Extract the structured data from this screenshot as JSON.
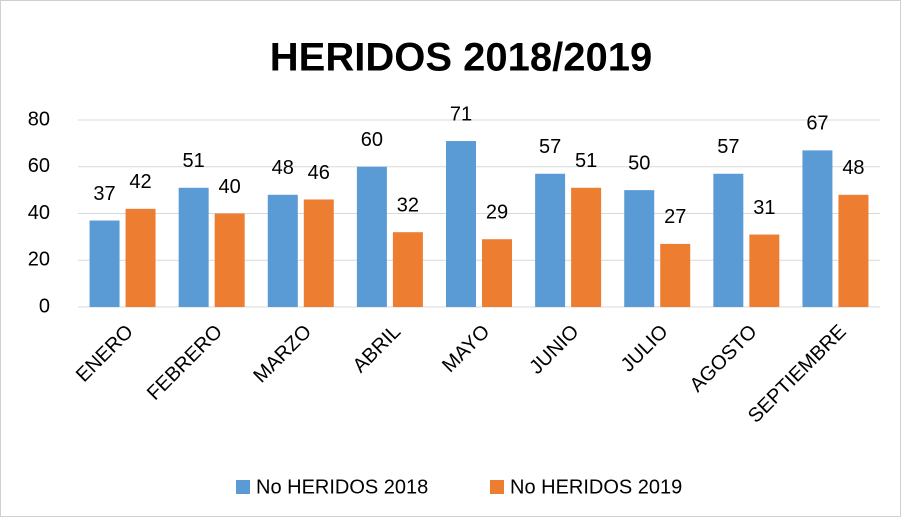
{
  "chart_data": {
    "type": "bar",
    "title": "HERIDOS 2018/2019",
    "categories": [
      "ENERO",
      "FEBRERO",
      "MARZO",
      "ABRIL",
      "MAYO",
      "JUNIO",
      "JULIO",
      "AGOSTO",
      "SEPTIEMBRE"
    ],
    "series": [
      {
        "name": "No HERIDOS 2018",
        "color": "#5b9bd5",
        "values": [
          37,
          51,
          48,
          60,
          71,
          57,
          50,
          57,
          67
        ]
      },
      {
        "name": "No HERIDOS 2019",
        "color": "#ed7d31",
        "values": [
          42,
          40,
          46,
          32,
          29,
          51,
          27,
          31,
          48
        ]
      }
    ],
    "ylim": [
      0,
      80
    ],
    "yticks": [
      0,
      20,
      40,
      60,
      80
    ],
    "grid": true,
    "legend": "bottom"
  }
}
